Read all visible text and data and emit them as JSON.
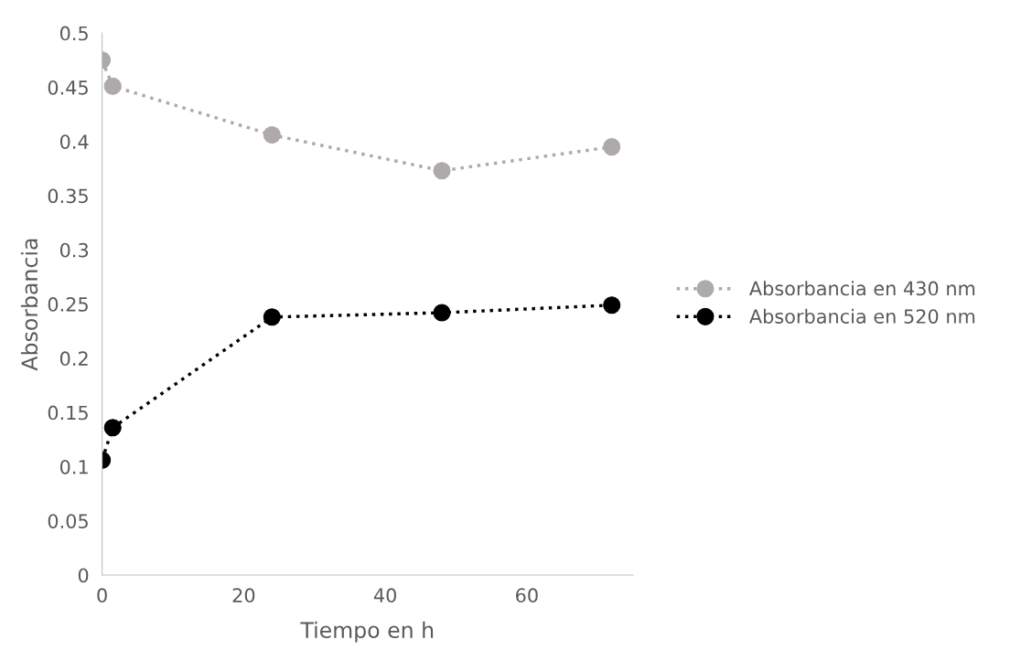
{
  "chart_data": {
    "type": "line",
    "xlabel": "Tiempo en h",
    "ylabel": "Absorbancia",
    "x": [
      0,
      1.5,
      24,
      48,
      72
    ],
    "series": [
      {
        "name": "Absorbancia en 430 nm",
        "color": "#aeaaaa",
        "values": [
          0.475,
          0.451,
          0.406,
          0.373,
          0.395
        ]
      },
      {
        "name": "Absorbancia en 520 nm",
        "color": "#000000",
        "values": [
          0.106,
          0.136,
          0.238,
          0.242,
          0.249
        ]
      }
    ],
    "xlim": [
      0,
      75
    ],
    "xticks": [
      0,
      20,
      40,
      60
    ],
    "ylim": [
      0,
      0.5
    ],
    "yticks": [
      0,
      0.05,
      0.1,
      0.15,
      0.2,
      0.25,
      0.3,
      0.35,
      0.4,
      0.45,
      0.5
    ],
    "grid": false,
    "legend": "right",
    "marker": "circle",
    "line_style": "dotted"
  }
}
